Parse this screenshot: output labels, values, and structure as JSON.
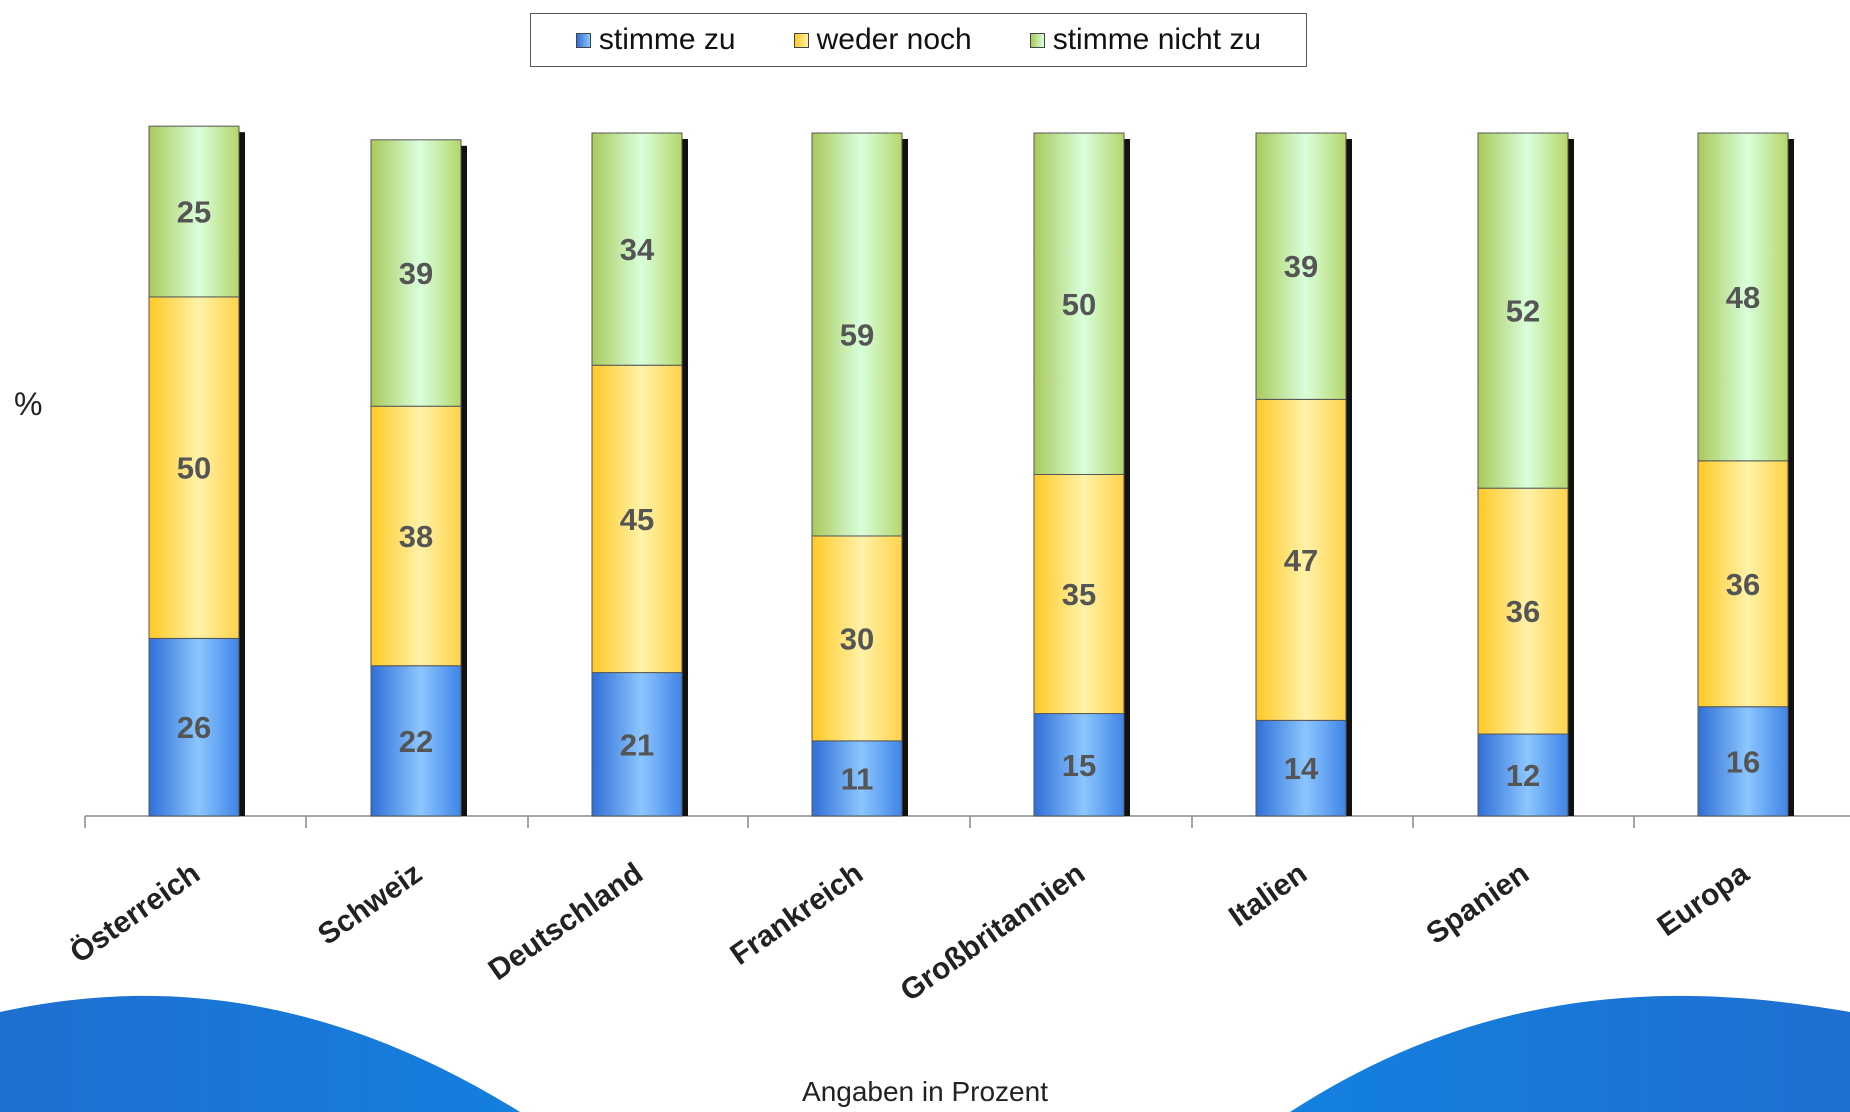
{
  "chart_data": {
    "type": "bar",
    "stacked": true,
    "categories": [
      "Österreich",
      "Schweiz",
      "Deutschland",
      "Frankreich",
      "Großbritannien",
      "Italien",
      "Spanien",
      "Europa"
    ],
    "series": [
      {
        "name": "stimme zu",
        "values": [
          26,
          22,
          21,
          11,
          15,
          14,
          12,
          16
        ],
        "color": "#5b9bd5"
      },
      {
        "name": "weder noch",
        "values": [
          50,
          38,
          45,
          30,
          35,
          47,
          36,
          36
        ],
        "color": "#ffd966"
      },
      {
        "name": "stimme nicht zu",
        "values": [
          25,
          39,
          34,
          59,
          50,
          39,
          52,
          48
        ],
        "color": "#c3f0b4"
      }
    ],
    "ylabel": "%",
    "xlabel": "",
    "ylim": [
      0,
      100
    ],
    "legend_position": "top",
    "grid": false
  },
  "footer": {
    "note": "Angaben in Prozent"
  }
}
